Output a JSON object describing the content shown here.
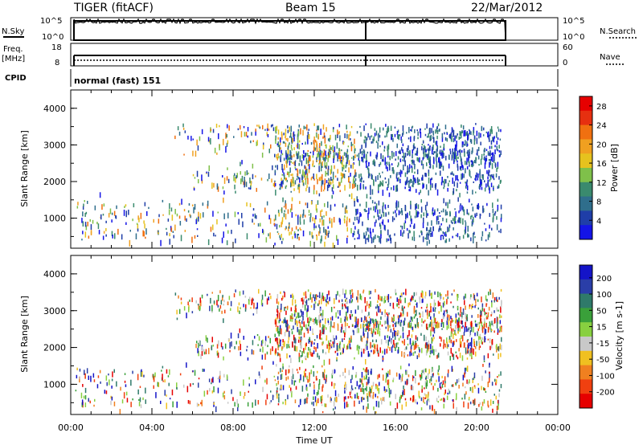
{
  "header": {
    "radar": "TIGER (fitACF)",
    "beam": "Beam 15",
    "date": "22/Mar/2012"
  },
  "summary": {
    "nsky_label": "N.Sky",
    "nsky_ticks": [
      "10^5",
      "10^0"
    ],
    "nsearch_label": "N.Search",
    "nsearch_ticks": [
      "10^5",
      "10^0"
    ],
    "freq_label_1": "Freq.",
    "freq_label_2": "[MHz]",
    "freq_ticks": [
      "18",
      "8"
    ],
    "nave_label": "Nave",
    "nave_ticks": [
      "60",
      "0"
    ],
    "cpid_label": "CPID",
    "cpid_value": "normal (fast) 151"
  },
  "colors": {
    "power": [
      "#1414e6",
      "#1f3ea8",
      "#2f6e8c",
      "#3a8a6e",
      "#7fc04a",
      "#e6c21e",
      "#f0a020",
      "#f07010",
      "#e63010",
      "#e60000"
    ],
    "velocity": [
      "#1414c8",
      "#2a3ea8",
      "#2f7a6a",
      "#3aa03a",
      "#88d040",
      "#c8c8c8",
      "#f0c020",
      "#f08020",
      "#f04010",
      "#e60000"
    ]
  },
  "chart_data": [
    {
      "type": "heatmap",
      "name": "power",
      "ylabel": "Slant Range [km]",
      "xlim_hours": [
        0,
        24
      ],
      "ylim_km": [
        180,
        4500
      ],
      "y_ticks": [
        "1000",
        "2000",
        "3000",
        "4000"
      ],
      "x_tick_labels": [
        "00:00",
        "04:00",
        "08:00",
        "12:00",
        "16:00",
        "20:00",
        "00:00"
      ],
      "colorbar_label": "Power [dB]",
      "colorbar_ticks": [
        "4",
        "8",
        "12",
        "16",
        "20",
        "24",
        "28"
      ],
      "colorbar_range": [
        0,
        30
      ]
    },
    {
      "type": "heatmap",
      "name": "velocity",
      "ylabel": "Slant Range [km]",
      "xlabel": "Time UT",
      "xlim_hours": [
        0,
        24
      ],
      "ylim_km": [
        180,
        4500
      ],
      "y_ticks": [
        "1000",
        "2000",
        "3000",
        "4000"
      ],
      "x_tick_labels": [
        "00:00",
        "04:00",
        "08:00",
        "12:00",
        "16:00",
        "20:00",
        "00:00"
      ],
      "colorbar_label": "Velocity [m s-1]",
      "colorbar_ticks": [
        "200",
        "100",
        "50",
        "15",
        "-15",
        "-50",
        "-100",
        "-200"
      ],
      "colorbar_range": [
        -250,
        250
      ]
    }
  ]
}
